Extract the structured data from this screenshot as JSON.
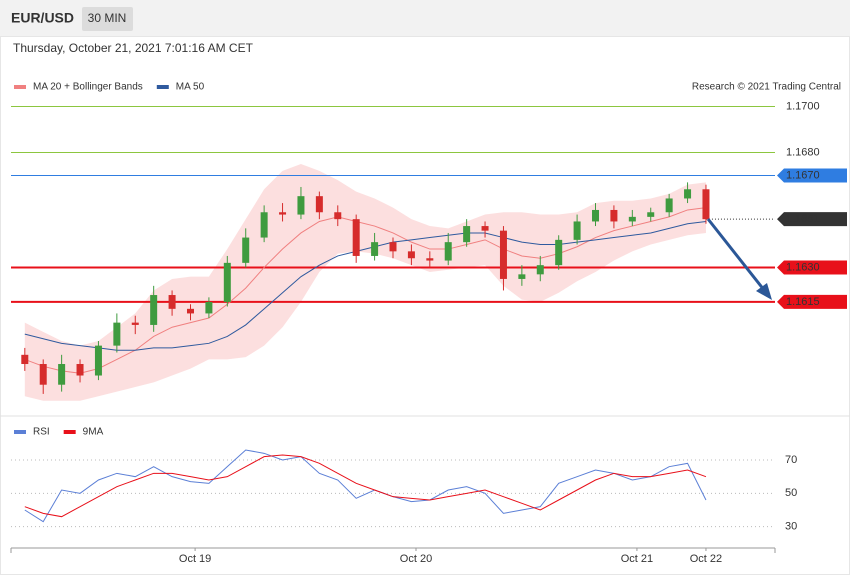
{
  "header": {
    "symbol": "EUR/USD",
    "interval": "30 MIN",
    "timestamp": "Thursday, October 21, 2021 7:01:16 AM CET"
  },
  "chart_data": [
    {
      "type": "candlestick",
      "credit": "Research © 2021 Trading Central",
      "xlim": [
        0,
        166
      ],
      "ylim": [
        1.1568,
        1.1705
      ],
      "up_color": "#3f9b3f",
      "down_color": "#d62c2c",
      "candles": {
        "x": [
          3,
          7,
          11,
          15,
          19,
          23,
          27,
          31,
          35,
          39,
          43,
          47,
          51,
          55,
          59,
          63,
          67,
          71,
          75,
          79,
          83,
          87,
          91,
          95,
          99,
          103,
          107,
          111,
          115,
          119,
          123,
          127,
          131,
          135,
          139,
          143,
          147,
          151
        ],
        "open": [
          1.1592,
          1.1588,
          1.1579,
          1.1588,
          1.1583,
          1.1596,
          1.1606,
          1.1605,
          1.1618,
          1.1612,
          1.161,
          1.1615,
          1.1632,
          1.1643,
          1.1654,
          1.1653,
          1.1661,
          1.1654,
          1.1651,
          1.1635,
          1.1641,
          1.1637,
          1.1634,
          1.1633,
          1.1641,
          1.1648,
          1.1646,
          1.1625,
          1.1627,
          1.1631,
          1.1642,
          1.165,
          1.1655,
          1.165,
          1.1652,
          1.1654,
          1.166,
          1.1664
        ],
        "high": [
          1.1595,
          1.159,
          1.1592,
          1.159,
          1.1598,
          1.161,
          1.1609,
          1.1622,
          1.162,
          1.1614,
          1.1617,
          1.1635,
          1.1647,
          1.1657,
          1.1658,
          1.1665,
          1.1663,
          1.1657,
          1.1653,
          1.1645,
          1.1643,
          1.164,
          1.1637,
          1.1645,
          1.1651,
          1.165,
          1.1648,
          1.1631,
          1.1635,
          1.1644,
          1.1653,
          1.1658,
          1.1657,
          1.1655,
          1.1656,
          1.1662,
          1.1667,
          1.1666
        ],
        "low": [
          1.1585,
          1.1575,
          1.1576,
          1.158,
          1.1581,
          1.1593,
          1.1601,
          1.1602,
          1.1609,
          1.1607,
          1.1608,
          1.1613,
          1.163,
          1.1641,
          1.165,
          1.1651,
          1.1651,
          1.1648,
          1.1632,
          1.1633,
          1.1634,
          1.1631,
          1.163,
          1.1631,
          1.1639,
          1.1643,
          1.162,
          1.1622,
          1.1624,
          1.1629,
          1.164,
          1.1648,
          1.1647,
          1.1648,
          1.165,
          1.1652,
          1.1658,
          1.1649
        ],
        "close": [
          1.1588,
          1.1579,
          1.1588,
          1.1583,
          1.1596,
          1.1606,
          1.1605,
          1.1618,
          1.1612,
          1.161,
          1.1615,
          1.1632,
          1.1643,
          1.1654,
          1.1653,
          1.1661,
          1.1654,
          1.1651,
          1.1635,
          1.1641,
          1.1637,
          1.1634,
          1.1633,
          1.1641,
          1.1648,
          1.1646,
          1.1625,
          1.1627,
          1.1631,
          1.1642,
          1.165,
          1.1655,
          1.165,
          1.1652,
          1.1654,
          1.166,
          1.1664,
          1.1651
        ]
      },
      "series": [
        {
          "name": "MA 20 + Bollinger Bands",
          "color": "#f08080",
          "band_color": "#fcd9d9",
          "values": [
            1.159,
            1.1587,
            1.1585,
            1.1584,
            1.1586,
            1.159,
            1.1594,
            1.16,
            1.1604,
            1.1606,
            1.1608,
            1.1614,
            1.1621,
            1.163,
            1.1638,
            1.1645,
            1.165,
            1.1652,
            1.165,
            1.1648,
            1.1645,
            1.1641,
            1.1638,
            1.1638,
            1.164,
            1.1642,
            1.1638,
            1.1635,
            1.1634,
            1.1636,
            1.1639,
            1.1643,
            1.1646,
            1.1648,
            1.165,
            1.1652,
            1.1655,
            1.1656
          ],
          "upper": [
            1.1606,
            1.1602,
            1.1598,
            1.1596,
            1.1598,
            1.1604,
            1.161,
            1.162,
            1.1625,
            1.1626,
            1.1626,
            1.1638,
            1.1651,
            1.1664,
            1.1672,
            1.1675,
            1.1672,
            1.1668,
            1.1663,
            1.166,
            1.1656,
            1.1651,
            1.1648,
            1.1647,
            1.165,
            1.1653,
            1.1654,
            1.1654,
            1.1653,
            1.1653,
            1.1654,
            1.1658,
            1.1659,
            1.1659,
            1.166,
            1.1662,
            1.1666,
            1.1667
          ],
          "lower": [
            1.1574,
            1.1572,
            1.1572,
            1.1572,
            1.1574,
            1.1576,
            1.1578,
            1.158,
            1.1583,
            1.1586,
            1.159,
            1.159,
            1.1591,
            1.1596,
            1.1604,
            1.1615,
            1.1628,
            1.1636,
            1.1637,
            1.1636,
            1.1634,
            1.1631,
            1.1628,
            1.1629,
            1.163,
            1.1631,
            1.1622,
            1.1616,
            1.1615,
            1.1619,
            1.1624,
            1.1628,
            1.1633,
            1.1637,
            1.164,
            1.1642,
            1.1644,
            1.1645
          ]
        },
        {
          "name": "MA 50",
          "color": "#2f5a9e",
          "values": [
            1.1601,
            1.1599,
            1.1597,
            1.1596,
            1.1595,
            1.1594,
            1.1594,
            1.1595,
            1.1595,
            1.1596,
            1.1597,
            1.16,
            1.1605,
            1.1612,
            1.1619,
            1.1626,
            1.1631,
            1.1635,
            1.1637,
            1.1639,
            1.1641,
            1.1642,
            1.1643,
            1.1644,
            1.1645,
            1.1645,
            1.1643,
            1.1641,
            1.164,
            1.164,
            1.1641,
            1.1642,
            1.1643,
            1.1644,
            1.1645,
            1.1647,
            1.1649,
            1.165
          ]
        }
      ],
      "levels": [
        {
          "value": 1.17,
          "label": "1.1700",
          "color": "#8cc63f"
        },
        {
          "value": 1.168,
          "label": "1.1680",
          "color": "#8cc63f"
        },
        {
          "value": 1.167,
          "label": "1.1670",
          "color": "#2f7de1",
          "tag": true
        },
        {
          "value": 1.1651,
          "label": "1.1651",
          "color": "#333333",
          "tag": true,
          "dotted": true
        },
        {
          "value": 1.163,
          "label": "1.1630",
          "color": "#e8101a",
          "tag": true
        },
        {
          "value": 1.1615,
          "label": "1.1615",
          "color": "#e8101a",
          "tag": true
        }
      ]
    },
    {
      "type": "line",
      "xlim": [
        0,
        166
      ],
      "ylim": [
        19,
        82
      ],
      "yticks": [
        30,
        50,
        70
      ],
      "grid": true,
      "x": [
        3,
        7,
        11,
        15,
        19,
        23,
        27,
        31,
        35,
        39,
        43,
        47,
        51,
        55,
        59,
        63,
        67,
        71,
        75,
        79,
        83,
        87,
        91,
        95,
        99,
        103,
        107,
        111,
        115,
        119,
        123,
        127,
        131,
        135,
        139,
        143,
        147,
        151
      ],
      "xticks": [
        {
          "value": 40,
          "label": "Oct 19"
        },
        {
          "value": 88,
          "label": "Oct 20"
        },
        {
          "value": 136,
          "label": "Oct 21"
        },
        {
          "value": 151,
          "label": "Oct 22"
        }
      ],
      "series": [
        {
          "name": "RSI",
          "color": "#5b7fd6",
          "values": [
            40,
            33,
            52,
            50,
            58,
            62,
            60,
            66,
            60,
            57,
            56,
            66,
            76,
            74,
            70,
            72,
            62,
            58,
            47,
            52,
            48,
            45,
            46,
            52,
            54,
            50,
            38,
            40,
            42,
            56,
            60,
            64,
            62,
            58,
            60,
            66,
            68,
            46
          ]
        },
        {
          "name": "9MA",
          "color": "#e8101a",
          "values": [
            42,
            38,
            36,
            42,
            48,
            54,
            58,
            62,
            62,
            60,
            58,
            60,
            66,
            72,
            73,
            72,
            68,
            62,
            56,
            52,
            48,
            47,
            46,
            48,
            50,
            52,
            48,
            44,
            40,
            46,
            52,
            58,
            62,
            60,
            60,
            62,
            64,
            60
          ]
        }
      ]
    }
  ]
}
